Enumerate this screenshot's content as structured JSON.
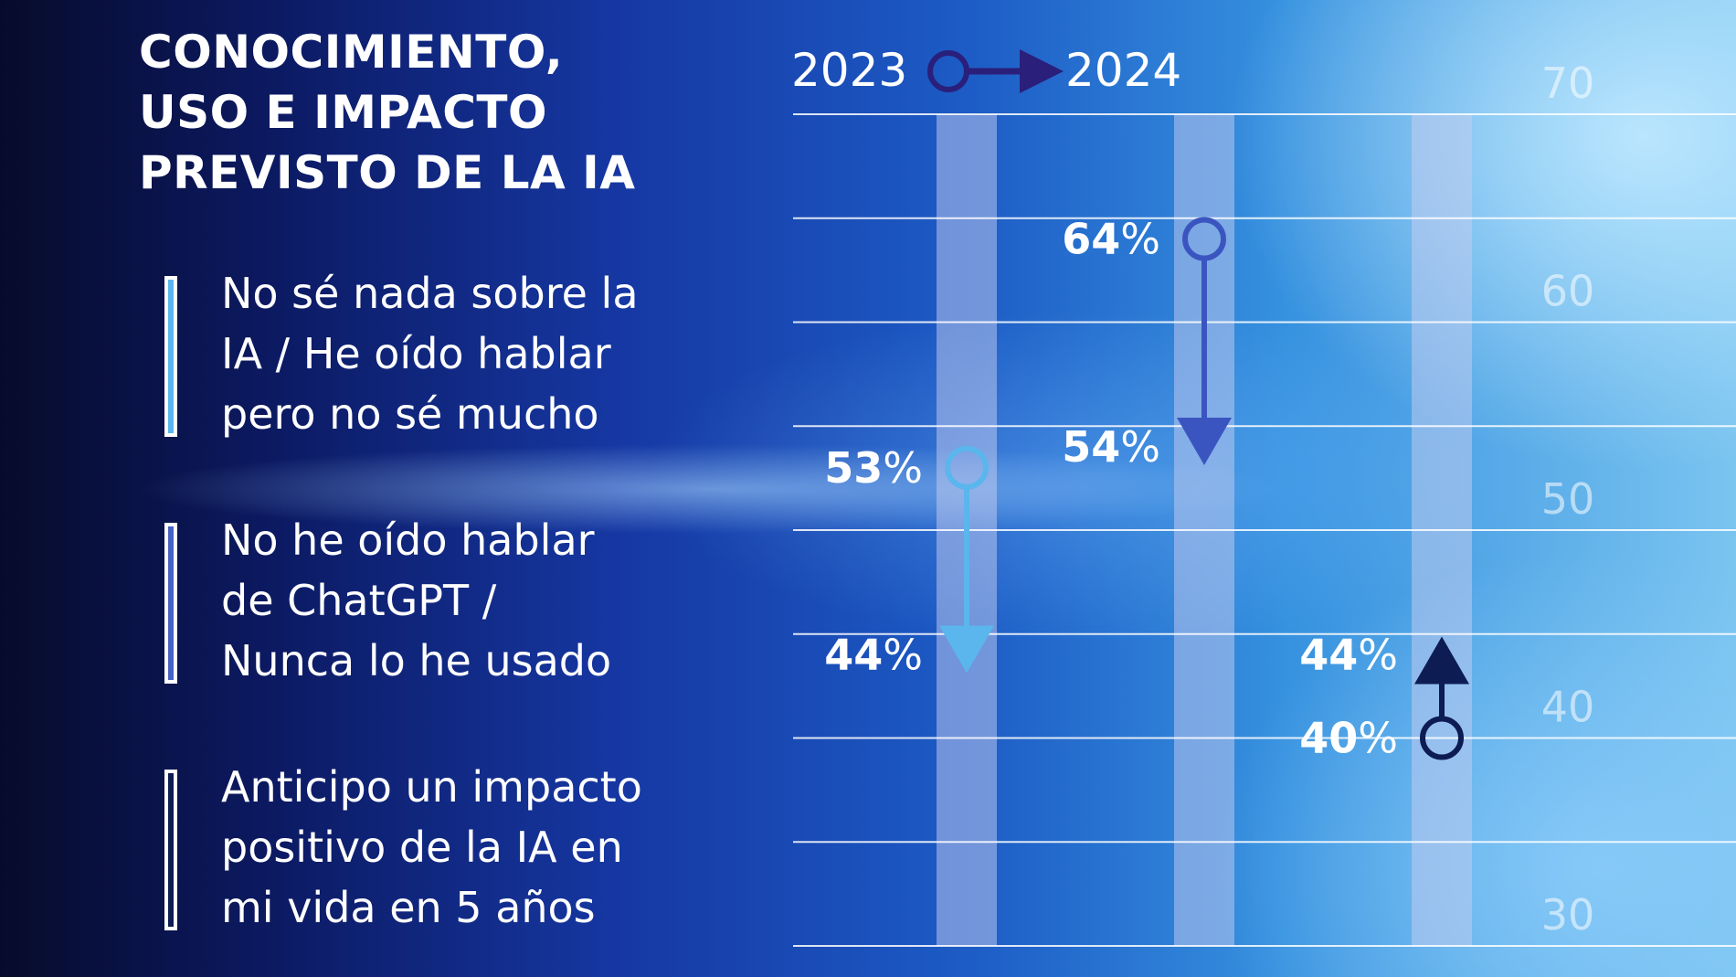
{
  "title_lines": [
    "CONOCIMIENTO,",
    "USO E IMPACTO",
    "PREVISTO DE LA IA"
  ],
  "years": {
    "start": "2023",
    "end": "2024"
  },
  "colors": {
    "series_1": "#5ab6ec",
    "series_2": "#3b55c0",
    "series_3": "#0d1c52",
    "year_marker": "#2a1f7a",
    "column_band": "#c7cdf0"
  },
  "legend": [
    {
      "lines": [
        "No sé nada sobre la",
        "IA / He oído hablar",
        "pero no sé mucho"
      ],
      "color": "#5ab6ec"
    },
    {
      "lines": [
        "No he oído hablar",
        "de ChatGPT /",
        "Nunca lo he usado"
      ],
      "color": "#4a62c6"
    },
    {
      "lines": [
        "Anticipo un impacto",
        "positivo de la IA en",
        "mi vida en 5 años"
      ],
      "color": "#0d1c52"
    }
  ],
  "chart_data": {
    "type": "dumbbell",
    "title": "CONOCIMIENTO, USO E IMPACTO PREVISTO DE LA IA",
    "x_labels": [
      "2023",
      "2024"
    ],
    "ylim": [
      30,
      70
    ],
    "y_ticks": [
      70,
      60,
      50,
      40,
      30
    ],
    "unit": "%",
    "grid": true,
    "series": [
      {
        "name": "No sé nada sobre la IA / He oído hablar pero no sé mucho",
        "values": [
          53,
          44
        ],
        "color": "#5ab6ec"
      },
      {
        "name": "No he oído hablar de ChatGPT / Nunca lo he usado",
        "values": [
          64,
          54
        ],
        "color": "#3b55c0"
      },
      {
        "name": "Anticipo un impacto positivo de la IA en mi vida en 5 años",
        "values": [
          40,
          44
        ],
        "color": "#0d1c52"
      }
    ]
  }
}
